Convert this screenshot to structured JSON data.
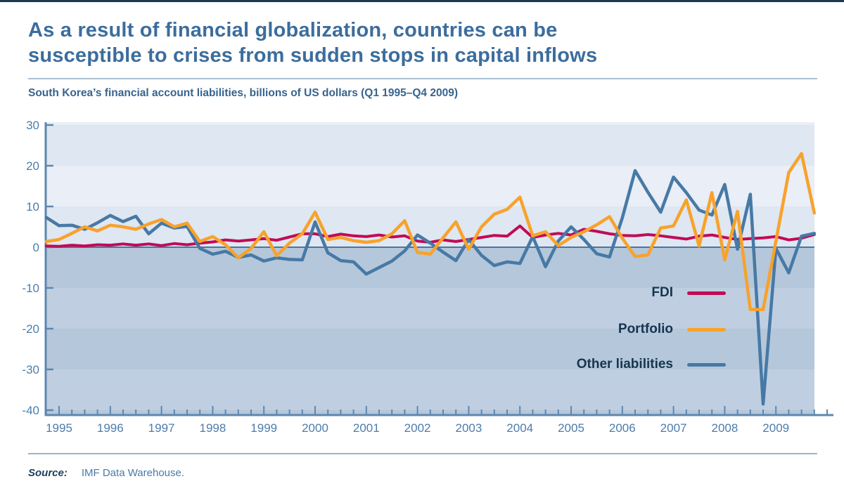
{
  "header": {
    "title_line1": "As a result of financial globalization, countries can be",
    "title_line2": "susceptible to crises from sudden stops in capital inflows",
    "subtitle": "South Korea’s financial account liabilities, billions of US dollars (Q1 1995–Q4 2009)"
  },
  "source": {
    "label": "Source:",
    "text": "IMF Data Warehouse."
  },
  "legend": {
    "items": [
      {
        "label": "FDI",
        "color": "#c20a56"
      },
      {
        "label": "Portfolio",
        "color": "#f8a22b"
      },
      {
        "label": "Other liabilities",
        "color": "#4779a5"
      }
    ]
  },
  "colors": {
    "title": "#3c6d9d",
    "subtitle": "#37648e",
    "axis": "#5e87af",
    "axis_text": "#4d7dab",
    "zero_line": "#4c749d",
    "legend_text": "#16364e",
    "band_upper_light": "#e9eef7",
    "band_upper_dark": "#dee7f2",
    "band_lower_a": "#b5c7da",
    "band_lower_b": "#bfcfe1",
    "top_border": "#1c3750",
    "rule": "#a9bed2"
  },
  "chart_data": {
    "type": "line",
    "title": "South Korea’s financial account liabilities, billions of US dollars (Q1 1995–Q4 2009)",
    "xlabel": "",
    "ylabel": "billions of US dollars",
    "x_tick_labels": [
      "1995",
      "1996",
      "1997",
      "1998",
      "1999",
      "2000",
      "2001",
      "2002",
      "2003",
      "2004",
      "2005",
      "2006",
      "2007",
      "2008",
      "2009"
    ],
    "quarters_per_year": 4,
    "n_quarters": 60,
    "ylim": [
      -41.5,
      30.8
    ],
    "y_ticks": [
      30,
      20,
      10,
      0,
      -10,
      -20,
      -30,
      -40
    ],
    "grid": false,
    "legend_position": "inside-right",
    "series": [
      {
        "name": "FDI",
        "color": "#c20a56",
        "lead_in": 0.3,
        "values": [
          0.2,
          0.5,
          0.3,
          0.6,
          0.5,
          0.8,
          0.5,
          0.8,
          0.4,
          0.9,
          0.6,
          1.0,
          1.3,
          1.8,
          1.5,
          1.8,
          2.1,
          1.7,
          2.5,
          3.3,
          3.3,
          2.6,
          3.2,
          2.8,
          2.6,
          3.0,
          2.5,
          2.8,
          1.5,
          1.2,
          1.8,
          1.4,
          1.9,
          2.4,
          2.9,
          2.7,
          5.2,
          2.4,
          3.0,
          3.4,
          3.0,
          4.4,
          3.9,
          3.3,
          2.9,
          2.8,
          3.1,
          2.8,
          2.4,
          2.0,
          2.7,
          3.0,
          2.4,
          1.9,
          2.1,
          2.3,
          2.6,
          1.8,
          2.2,
          3.1
        ]
      },
      {
        "name": "Other liabilities",
        "color": "#4779a5",
        "lead_in": 7.3,
        "values": [
          5.3,
          5.4,
          4.4,
          6.0,
          7.8,
          6.3,
          7.6,
          3.3,
          5.9,
          4.7,
          5.1,
          -0.3,
          -1.7,
          -1.0,
          -2.5,
          -1.9,
          -3.4,
          -2.6,
          -3.0,
          -3.1,
          6.2,
          -1.4,
          -3.3,
          -3.6,
          -6.6,
          -5.0,
          -3.4,
          -0.9,
          3.0,
          1.0,
          -1.2,
          -3.3,
          1.9,
          -2.0,
          -4.5,
          -3.6,
          -4.0,
          2.6,
          -4.8,
          1.5,
          5.0,
          1.9,
          -1.6,
          -2.4,
          7.2,
          18.8,
          13.5,
          8.6,
          17.2,
          13.4,
          9.1,
          7.9,
          15.4,
          -0.5,
          13.0,
          -38.5,
          -0.3,
          -6.3,
          2.7,
          3.4
        ]
      },
      {
        "name": "Portfolio",
        "color": "#f8a22b",
        "lead_in": 1.4,
        "values": [
          1.9,
          3.4,
          5.0,
          4.0,
          5.4,
          5.0,
          4.4,
          5.7,
          6.8,
          5.0,
          5.9,
          1.4,
          2.6,
          0.6,
          -2.6,
          -0.3,
          3.8,
          -2.1,
          1.0,
          3.3,
          8.6,
          1.9,
          2.4,
          1.6,
          1.2,
          1.6,
          3.3,
          6.5,
          -1.3,
          -1.7,
          2.3,
          6.2,
          -0.5,
          5.0,
          8.1,
          9.3,
          12.3,
          2.8,
          3.8,
          0.4,
          2.4,
          3.8,
          5.5,
          7.5,
          2.2,
          -2.3,
          -1.9,
          4.7,
          5.2,
          11.6,
          0.3,
          13.4,
          -3.1,
          8.8,
          -15.3,
          -15.3,
          1.5,
          18.3,
          23.0,
          8.4
        ]
      }
    ]
  }
}
